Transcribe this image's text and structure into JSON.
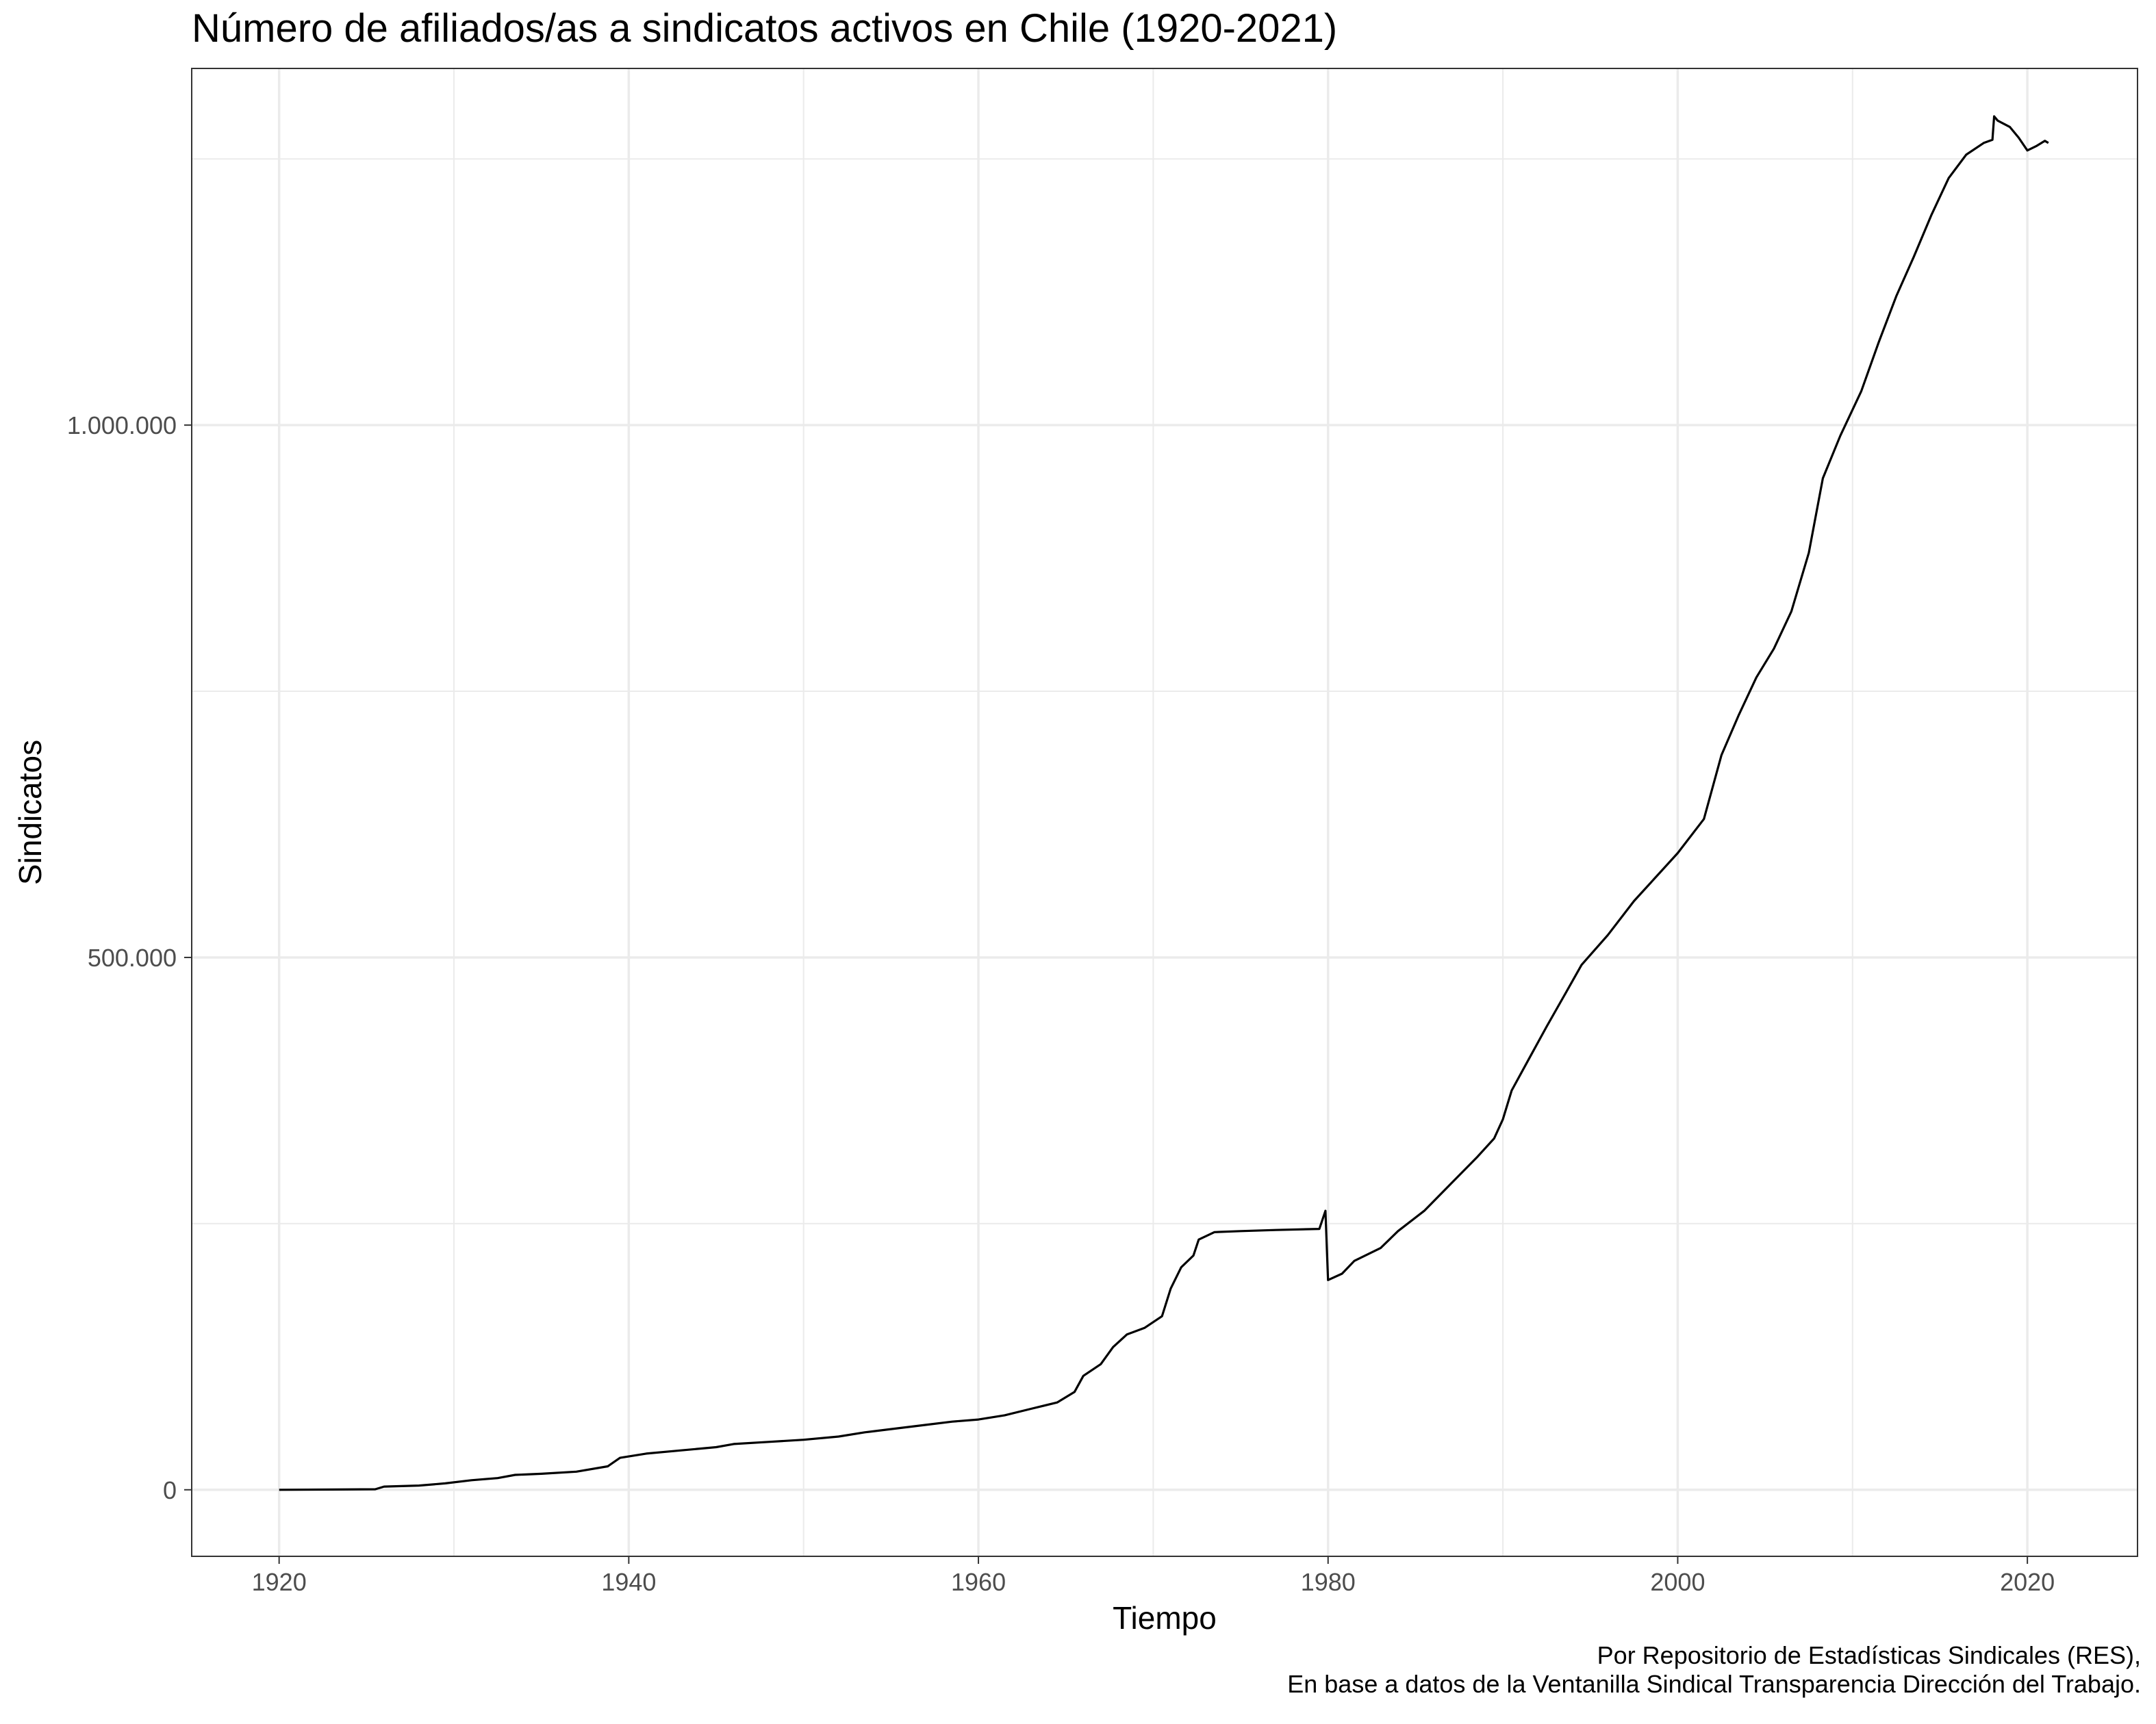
{
  "title": "Número de afiliados/as a sindicatos activos en Chile (1920-2021)",
  "caption": {
    "line1": "Por Repositorio de Estadísticas Sindicales (RES),",
    "line2": "En base a datos de la Ventanilla Sindical Transparencia Dirección del Trabajo."
  },
  "colors": {
    "line": "#000000",
    "grid": "#ebebeb",
    "panel_border": "#333333",
    "tick_text": "#4d4d4d"
  },
  "chart_data": {
    "type": "line",
    "title": "Número de afiliados/as a sindicatos activos en Chile (1920-2021)",
    "xlabel": "Tiempo",
    "ylabel": "Sindicatos",
    "xlim": [
      1915,
      2026.3
    ],
    "ylim": [
      -62500,
      1335000
    ],
    "x_ticks": [
      1920,
      1940,
      1960,
      1980,
      2000,
      2020
    ],
    "x_tick_labels": [
      "1920",
      "1940",
      "1960",
      "1980",
      "2000",
      "2020"
    ],
    "y_ticks": [
      0,
      500000,
      1000000
    ],
    "y_tick_labels": [
      "0",
      "500.000",
      "1.000.000"
    ],
    "grid": true,
    "legend": "none",
    "series": [
      {
        "values": [
          [
            1920.0,
            0
          ],
          [
            1925.5,
            500
          ],
          [
            1926.0,
            3000
          ],
          [
            1928.0,
            4000
          ],
          [
            1929.5,
            6000
          ],
          [
            1931.0,
            9000
          ],
          [
            1932.5,
            11000
          ],
          [
            1933.5,
            14000
          ],
          [
            1935.0,
            15000
          ],
          [
            1937.0,
            17000
          ],
          [
            1938.8,
            22000
          ],
          [
            1939.5,
            30000
          ],
          [
            1941.0,
            34000
          ],
          [
            1943.0,
            37000
          ],
          [
            1945.0,
            40000
          ],
          [
            1946.0,
            43000
          ],
          [
            1948.0,
            45000
          ],
          [
            1950.0,
            47000
          ],
          [
            1952.0,
            50000
          ],
          [
            1953.5,
            54000
          ],
          [
            1955.0,
            57000
          ],
          [
            1957.0,
            61000
          ],
          [
            1958.5,
            64000
          ],
          [
            1960.0,
            66000
          ],
          [
            1961.5,
            70000
          ],
          [
            1963.0,
            76000
          ],
          [
            1964.5,
            82000
          ],
          [
            1965.5,
            92000
          ],
          [
            1966.0,
            107000
          ],
          [
            1967.0,
            118000
          ],
          [
            1967.7,
            134000
          ],
          [
            1968.5,
            146000
          ],
          [
            1969.5,
            152000
          ],
          [
            1970.5,
            163000
          ],
          [
            1971.0,
            189000
          ],
          [
            1971.6,
            209000
          ],
          [
            1972.3,
            220000
          ],
          [
            1972.6,
            235000
          ],
          [
            1973.5,
            242000
          ],
          [
            1975.0,
            243000
          ],
          [
            1977.0,
            244000
          ],
          [
            1979.5,
            245000
          ],
          [
            1979.85,
            262000
          ],
          [
            1980.0,
            197000
          ],
          [
            1980.8,
            203000
          ],
          [
            1981.5,
            215000
          ],
          [
            1983.0,
            227000
          ],
          [
            1984.0,
            243000
          ],
          [
            1985.5,
            262000
          ],
          [
            1987.0,
            287000
          ],
          [
            1988.5,
            312000
          ],
          [
            1989.5,
            330000
          ],
          [
            1990.0,
            348000
          ],
          [
            1990.5,
            375000
          ],
          [
            1991.5,
            405000
          ],
          [
            1992.5,
            435000
          ],
          [
            1993.5,
            464000
          ],
          [
            1994.5,
            493000
          ],
          [
            1996.0,
            521000
          ],
          [
            1997.5,
            553000
          ],
          [
            1999.0,
            580000
          ],
          [
            2000.0,
            598000
          ],
          [
            2001.5,
            630000
          ],
          [
            2002.5,
            690000
          ],
          [
            2003.5,
            728000
          ],
          [
            2004.5,
            763000
          ],
          [
            2005.5,
            790000
          ],
          [
            2006.5,
            825000
          ],
          [
            2007.5,
            880000
          ],
          [
            2008.3,
            950000
          ],
          [
            2009.3,
            990000
          ],
          [
            2010.5,
            1032000
          ],
          [
            2011.5,
            1078000
          ],
          [
            2012.5,
            1121000
          ],
          [
            2013.5,
            1158000
          ],
          [
            2014.5,
            1197000
          ],
          [
            2015.5,
            1232000
          ],
          [
            2016.5,
            1254000
          ],
          [
            2017.5,
            1265000
          ],
          [
            2018.0,
            1268000
          ],
          [
            2018.1,
            1290000
          ],
          [
            2018.3,
            1286000
          ],
          [
            2019.0,
            1280000
          ],
          [
            2019.5,
            1270000
          ],
          [
            2020.0,
            1258000
          ],
          [
            2020.5,
            1262000
          ],
          [
            2021.0,
            1267000
          ],
          [
            2021.2,
            1265000
          ]
        ]
      }
    ]
  }
}
